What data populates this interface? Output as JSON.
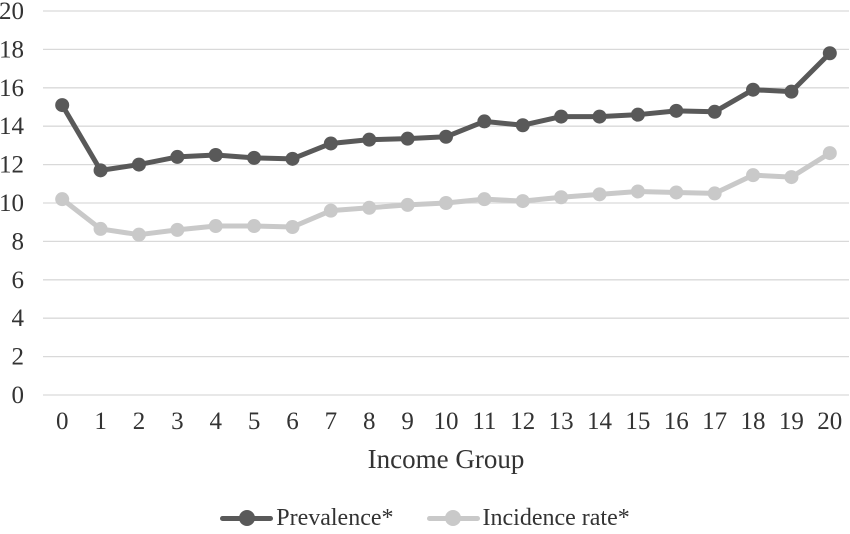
{
  "figure": {
    "background_color": "#ffffff",
    "text_color": "#333333"
  },
  "chart_data": {
    "type": "line",
    "title": "",
    "xlabel": "Income Group",
    "ylabel": "",
    "x": [
      0,
      1,
      2,
      3,
      4,
      5,
      6,
      7,
      8,
      9,
      10,
      11,
      12,
      13,
      14,
      15,
      16,
      17,
      18,
      19,
      20
    ],
    "ylim": [
      0,
      20
    ],
    "ytick_step": 2,
    "yticks": [
      0,
      2,
      4,
      6,
      8,
      10,
      12,
      14,
      16,
      18,
      20
    ],
    "grid": "horizontal",
    "gridline_color": "#d9d9d9",
    "axis_text_color": "#333333",
    "legend_position": "bottom",
    "marker": "circle",
    "series": [
      {
        "name": "Prevalence*",
        "color": "#595959",
        "values": [
          15.1,
          11.7,
          12.0,
          12.4,
          12.5,
          12.35,
          12.3,
          13.1,
          13.3,
          13.35,
          13.45,
          14.25,
          14.05,
          14.5,
          14.5,
          14.6,
          14.8,
          14.75,
          15.9,
          15.8,
          17.8
        ]
      },
      {
        "name": "Incidence rate*",
        "color": "#c9c9c9",
        "values": [
          10.2,
          8.65,
          8.35,
          8.6,
          8.8,
          8.8,
          8.75,
          9.6,
          9.75,
          9.9,
          10.0,
          10.2,
          10.1,
          10.3,
          10.45,
          10.6,
          10.55,
          10.5,
          11.45,
          11.35,
          12.6
        ]
      }
    ]
  }
}
